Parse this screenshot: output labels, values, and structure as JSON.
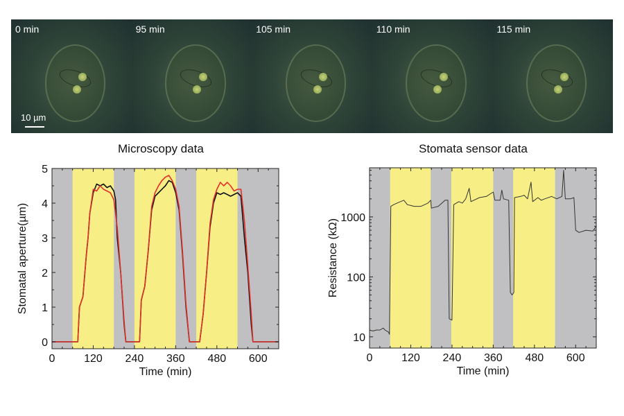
{
  "images": {
    "panels": [
      {
        "label": "0 min"
      },
      {
        "label": "95 min"
      },
      {
        "label": "105 min"
      },
      {
        "label": "110 min"
      },
      {
        "label": "115 min"
      }
    ],
    "scale_bar_label": "10 µm"
  },
  "colors": {
    "light": "#f7ef86",
    "dark": "#c0c0c2",
    "series_black": "#111111",
    "series_red": "#e0302a"
  },
  "chart_data": [
    {
      "type": "line",
      "title": "Microscopy data",
      "xlabel": "Time (min)",
      "ylabel": "Stomatal aperture(µm)",
      "xlim": [
        0,
        660
      ],
      "ylim": [
        -0.2,
        5
      ],
      "xticks": [
        0,
        120,
        240,
        360,
        480,
        600
      ],
      "yticks": [
        0,
        1,
        2,
        3,
        4,
        5
      ],
      "light_periods": [
        [
          60,
          180
        ],
        [
          240,
          360
        ],
        [
          420,
          540
        ]
      ],
      "series": [
        {
          "color": "#111111",
          "x": [
            0,
            75,
            80,
            90,
            100,
            105,
            110,
            120,
            130,
            140,
            150,
            160,
            170,
            180,
            185,
            190,
            200,
            210,
            215,
            255,
            260,
            270,
            280,
            290,
            300,
            310,
            320,
            330,
            340,
            350,
            360,
            370,
            380,
            390,
            400,
            430,
            440,
            450,
            460,
            470,
            480,
            490,
            500,
            510,
            520,
            530,
            540,
            550,
            560,
            570,
            580,
            585,
            660
          ],
          "y": [
            0,
            0,
            1.0,
            1.3,
            2.5,
            3.0,
            3.7,
            4.3,
            4.55,
            4.5,
            4.55,
            4.45,
            4.5,
            4.35,
            4.1,
            3.0,
            2.0,
            0.5,
            0,
            0,
            1.2,
            1.6,
            2.6,
            3.8,
            4.2,
            4.3,
            4.4,
            4.5,
            4.65,
            4.6,
            4.3,
            3.8,
            2.5,
            1.0,
            0,
            0,
            0.8,
            2.0,
            3.3,
            4.0,
            4.3,
            4.25,
            4.3,
            4.25,
            4.2,
            4.25,
            4.3,
            4.2,
            3.0,
            2.0,
            0.5,
            0,
            0
          ]
        },
        {
          "color": "#e0302a",
          "x": [
            0,
            75,
            80,
            90,
            100,
            105,
            110,
            120,
            130,
            140,
            150,
            160,
            170,
            180,
            190,
            200,
            210,
            215,
            255,
            260,
            270,
            280,
            290,
            300,
            310,
            320,
            330,
            340,
            350,
            360,
            370,
            380,
            390,
            400,
            430,
            440,
            450,
            460,
            470,
            480,
            490,
            500,
            510,
            520,
            530,
            540,
            550,
            560,
            570,
            580,
            585,
            660
          ],
          "y": [
            0,
            0,
            1.0,
            1.3,
            2.5,
            3.0,
            3.7,
            4.4,
            4.35,
            4.5,
            4.4,
            4.35,
            4.3,
            4.1,
            3.3,
            2.0,
            0.6,
            0,
            0,
            1.2,
            1.6,
            2.6,
            3.9,
            4.3,
            4.5,
            4.65,
            4.75,
            4.8,
            4.65,
            4.4,
            3.9,
            2.6,
            1.1,
            0,
            0,
            0.8,
            2.0,
            3.4,
            4.1,
            4.4,
            4.6,
            4.5,
            4.6,
            4.5,
            4.35,
            4.4,
            4.4,
            3.5,
            2.2,
            0.8,
            0,
            0
          ]
        }
      ]
    },
    {
      "type": "line",
      "title": "Stomata sensor data",
      "xlabel": "Time (min)",
      "ylabel": "Resistance (kΩ)",
      "yscale": "log",
      "xlim": [
        0,
        660
      ],
      "ylim": [
        6.5,
        6600
      ],
      "xticks": [
        0,
        120,
        240,
        360,
        480,
        600
      ],
      "yticks": [
        10,
        100,
        1000
      ],
      "light_periods": [
        [
          60,
          178
        ],
        [
          238,
          360
        ],
        [
          418,
          540
        ]
      ],
      "series": [
        {
          "color": "#333333",
          "x": [
            0,
            10,
            20,
            30,
            40,
            45,
            50,
            55,
            58,
            62,
            70,
            80,
            90,
            100,
            110,
            120,
            130,
            150,
            170,
            178,
            180,
            200,
            220,
            228,
            232,
            240,
            245,
            260,
            270,
            280,
            290,
            295,
            320,
            340,
            355,
            360,
            365,
            380,
            385,
            390,
            405,
            410,
            415,
            420,
            422,
            440,
            450,
            460,
            470,
            475,
            490,
            500,
            510,
            530,
            545,
            560,
            565,
            570,
            585,
            595,
            600,
            610,
            630,
            650,
            660
          ],
          "y": [
            13,
            12.5,
            13,
            13,
            14,
            13,
            12.5,
            12,
            11,
            1500,
            1600,
            1700,
            1800,
            1900,
            1600,
            1550,
            1500,
            1500,
            1700,
            1900,
            1400,
            1500,
            1900,
            1900,
            20,
            19,
            1600,
            1800,
            1700,
            2000,
            3000,
            1800,
            2100,
            2200,
            2500,
            2600,
            1900,
            1900,
            2800,
            2000,
            1900,
            55,
            50,
            55,
            2100,
            2200,
            2300,
            2000,
            3800,
            1800,
            2100,
            1900,
            2000,
            2200,
            2000,
            2200,
            6000,
            2000,
            2000,
            2100,
            600,
            550,
            600,
            580,
            700
          ]
        }
      ]
    }
  ]
}
